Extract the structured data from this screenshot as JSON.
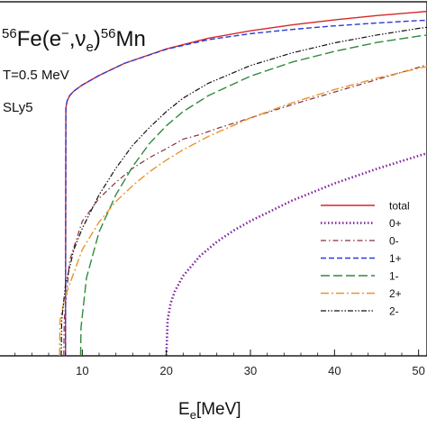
{
  "chart_data": {
    "type": "line",
    "title_parts": {
      "a_mass": "56",
      "a_elem": "Fe(e",
      "a_sup": "−",
      "a_mid": ",ν",
      "a_sub": "e",
      "a_close": ")",
      "b_mass": "56",
      "b_elem": "Mn"
    },
    "annotations": [
      "T=0.5 MeV",
      "SLy5"
    ],
    "xlabel_main": "E",
    "xlabel_sub": "e",
    "xlabel_unit": "[MeV]",
    "ylabel": "",
    "xlim": [
      0,
      51
    ],
    "ylim": [
      0,
      1
    ],
    "x_ticks": [
      10,
      20,
      30,
      40,
      50
    ],
    "x_tick_labels": [
      "10",
      "20",
      "30",
      "40",
      "50"
    ],
    "grid": false,
    "legend_position": "right",
    "series": [
      {
        "name": "total",
        "color": "#d62728",
        "dash": "",
        "width": 1.4,
        "x": [
          8.0,
          8.05,
          8.2,
          8.5,
          9,
          10,
          12,
          15,
          20,
          25,
          30,
          35,
          40,
          45,
          50,
          51
        ],
        "y": [
          0.0,
          0.7,
          0.72,
          0.735,
          0.748,
          0.765,
          0.792,
          0.826,
          0.867,
          0.897,
          0.918,
          0.935,
          0.949,
          0.961,
          0.971,
          0.973
        ]
      },
      {
        "name": "0+",
        "color": "#7f1f9f",
        "dash": "1.5 2.5",
        "width": 2.6,
        "x": [
          20.0,
          20.15,
          20.5,
          21,
          22,
          24,
          26,
          28,
          30,
          35,
          40,
          45,
          50,
          51
        ],
        "y": [
          0.0,
          0.1,
          0.148,
          0.182,
          0.226,
          0.282,
          0.322,
          0.354,
          0.381,
          0.439,
          0.487,
          0.528,
          0.565,
          0.572
        ]
      },
      {
        "name": "0-",
        "color": "#8c2d3c",
        "dash": "6 3 1.5 3",
        "width": 1.2,
        "x": [
          7.8,
          7.85,
          8.5,
          10,
          12,
          14,
          16,
          18,
          20,
          22,
          24,
          26,
          30,
          35,
          40,
          45,
          50,
          51
        ],
        "y": [
          0.0,
          0.1,
          0.27,
          0.38,
          0.445,
          0.49,
          0.53,
          0.56,
          0.585,
          0.612,
          0.625,
          0.642,
          0.672,
          0.71,
          0.745,
          0.78,
          0.815,
          0.822
        ]
      },
      {
        "name": "1+",
        "color": "#2b3bd6",
        "dash": "6 3",
        "width": 1.4,
        "x": [
          8.0,
          8.05,
          8.2,
          8.5,
          9,
          10,
          12,
          15,
          20,
          25,
          30,
          35,
          40,
          45,
          50,
          51
        ],
        "y": [
          0.0,
          0.7,
          0.72,
          0.735,
          0.748,
          0.765,
          0.792,
          0.826,
          0.866,
          0.893,
          0.91,
          0.922,
          0.932,
          0.94,
          0.947,
          0.948
        ]
      },
      {
        "name": "1-",
        "color": "#2e8b3a",
        "dash": "10 4",
        "width": 1.4,
        "x": [
          9.8,
          9.85,
          10.5,
          12,
          14,
          16,
          18,
          20,
          22,
          25,
          30,
          35,
          40,
          45,
          50,
          51
        ],
        "y": [
          0.0,
          0.08,
          0.22,
          0.35,
          0.455,
          0.535,
          0.6,
          0.65,
          0.69,
          0.735,
          0.79,
          0.83,
          0.86,
          0.885,
          0.903,
          0.906
        ]
      },
      {
        "name": "2+",
        "color": "#e8952b",
        "dash": "9 3 2 3",
        "width": 1.4,
        "x": [
          7.3,
          7.35,
          8,
          10,
          12,
          14,
          16,
          18,
          20,
          22,
          25,
          30,
          35,
          40,
          45,
          50,
          51
        ],
        "y": [
          0.0,
          0.1,
          0.17,
          0.3,
          0.378,
          0.436,
          0.481,
          0.52,
          0.553,
          0.582,
          0.62,
          0.672,
          0.715,
          0.752,
          0.784,
          0.812,
          0.817
        ]
      },
      {
        "name": "2-",
        "color": "#111111",
        "dash": "6 2 1.5 2 1.5 2",
        "width": 1.2,
        "x": [
          7.5,
          7.55,
          8,
          9,
          10,
          12,
          14,
          16,
          18,
          20,
          22,
          25,
          30,
          35,
          40,
          45,
          50,
          51
        ],
        "y": [
          0.0,
          0.1,
          0.2,
          0.3,
          0.36,
          0.455,
          0.53,
          0.595,
          0.645,
          0.69,
          0.728,
          0.77,
          0.82,
          0.856,
          0.884,
          0.906,
          0.925,
          0.928
        ]
      }
    ]
  }
}
